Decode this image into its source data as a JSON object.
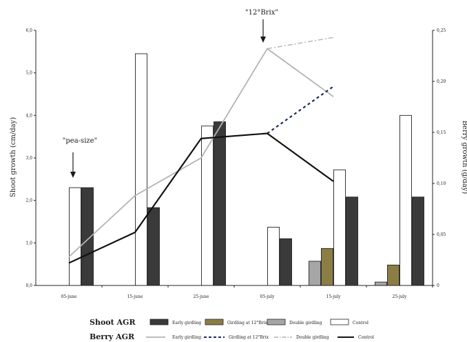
{
  "chart_data": {
    "type": "bar",
    "xlabel": "",
    "ylabel_left": "Shoot growth (cm/day)",
    "ylabel_right": "Berry growth (g/day)",
    "categories": [
      "05-june",
      "15-june",
      "25-june",
      "05-july",
      "15-july",
      "25-july"
    ],
    "y_left": {
      "min": 0,
      "max": 6,
      "ticks": [
        "0,0",
        "1,0",
        "2,0",
        "3,0",
        "4,0",
        "5,0",
        "6,0"
      ]
    },
    "y_right": {
      "min": 0,
      "max": 0.25,
      "ticks": [
        "0",
        "0,05",
        "0,10",
        "0,15",
        "0,20",
        "0,25"
      ]
    },
    "bar_series": [
      {
        "name": "Double girdling",
        "color": "#a6a6a6",
        "values": [
          null,
          null,
          null,
          null,
          0.57,
          0.08
        ]
      },
      {
        "name": "Girdling at 12°Brix",
        "color": "#8c7d45",
        "values": [
          null,
          null,
          null,
          null,
          0.87,
          0.48
        ]
      },
      {
        "name": "Control",
        "color": "#ffffff",
        "values": [
          2.3,
          5.45,
          3.75,
          1.37,
          2.72,
          4.0
        ]
      },
      {
        "name": "Early girdling",
        "color": "#3a3a3a",
        "values": [
          2.3,
          1.83,
          3.85,
          1.1,
          2.08,
          2.08
        ]
      }
    ],
    "line_series": [
      {
        "name": "Early girdling",
        "style": "solid",
        "color": "#b3b3b3",
        "x": [
          0,
          1,
          2,
          3,
          4
        ],
        "values": [
          0.028,
          0.088,
          0.125,
          0.232,
          0.185
        ]
      },
      {
        "name": "Girdling at 12°Brix",
        "style": "dashed",
        "color": "#1a2a55",
        "x": [
          3,
          4
        ],
        "values": [
          0.149,
          0.195
        ]
      },
      {
        "name": "Double girdling",
        "style": "dashdot",
        "color": "#b3b3b3",
        "x": [
          3,
          4
        ],
        "values": [
          0.232,
          0.243
        ]
      },
      {
        "name": "Control",
        "style": "solid",
        "color": "#111111",
        "x": [
          0,
          1,
          2,
          3,
          4
        ],
        "values": [
          0.022,
          0.052,
          0.144,
          0.149,
          0.102
        ]
      }
    ],
    "annotations": [
      {
        "text": "\"pea-size\"",
        "category": "05-june"
      },
      {
        "text": "\"12°Brix\"",
        "category": "05-july"
      }
    ],
    "legend": {
      "placement": "bottom",
      "shoot_title": "Shoot AGR",
      "berry_title": "Berry AGR",
      "shoot_items": [
        "Early girdling",
        "Girdling at 12°Brix",
        "Double girdling",
        "Control"
      ],
      "berry_items": [
        "Early girdling",
        "Girdling at 12°Brix",
        "Double girdling",
        "Control"
      ]
    }
  }
}
